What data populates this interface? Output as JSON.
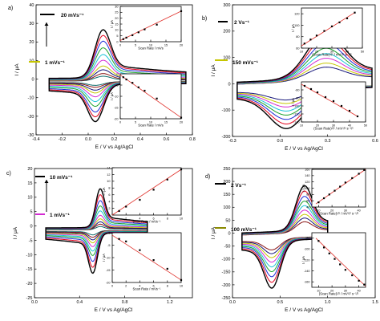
{
  "figure": {
    "background": "#ffffff",
    "axis_color": "#000000",
    "fit_color": "#e0302a",
    "curve_colors": [
      "#000000",
      "#e3001b",
      "#1d2bd8",
      "#1aa02a",
      "#19c4d8",
      "#d42bd2",
      "#c6c600",
      "#15157a",
      "#8a1414",
      "#0d6b6b"
    ]
  },
  "chart_data": [
    {
      "type": "line",
      "panel": "a)",
      "xlabel": "E / V vs Ag/AgCl",
      "ylabel": "I / μA",
      "xlim": [
        -0.4,
        0.8
      ],
      "ylim": [
        -30,
        40
      ],
      "xticks": [
        -0.4,
        -0.2,
        0.0,
        0.2,
        0.4,
        0.6,
        0.8
      ],
      "xticklabels": [
        "-0.4",
        "-0.2",
        "0.0",
        "0.2",
        "0.4",
        "0.6",
        "0.8"
      ],
      "yticks": [
        -30,
        -20,
        -10,
        0,
        10,
        20,
        30,
        40
      ],
      "yticklabels": [
        "-30",
        "-20",
        "-10",
        "0",
        "10",
        "20",
        "30",
        "40"
      ],
      "cv": {
        "e_start": -0.3,
        "e_end": 0.75,
        "e_pa": 0.11,
        "e_pc": 0.06,
        "width": 0.085,
        "base_slope": 0.6,
        "base_offset": -1.2,
        "peaks_a": [
          27,
          24,
          21,
          17.5,
          14,
          11,
          8,
          6,
          4,
          2.6
        ],
        "peaks_c": [
          -21,
          -18.5,
          -16,
          -13,
          -10.5,
          -8,
          -6,
          -4.5,
          -3,
          -2
        ]
      },
      "legend": [
        {
          "label": "20 mVs⁻¹",
          "color": "#000000"
        },
        {
          "label": "1 mVs⁻¹",
          "color": "#c6c600"
        }
      ],
      "insets": [
        {
          "xlabel": "Scan Rate / mVs",
          "ylabel": "I / μA",
          "xlim": [
            0,
            20
          ],
          "ylim": [
            0,
            30
          ],
          "xticks": [
            0,
            5,
            10,
            15,
            20
          ],
          "yticks": [
            0,
            5,
            10,
            15,
            20,
            25,
            30
          ],
          "points": [
            [
              1,
              2.2
            ],
            [
              2,
              3.5
            ],
            [
              4,
              5.5
            ],
            [
              6,
              8
            ],
            [
              8,
              10.5
            ],
            [
              12,
              14.5
            ],
            [
              20,
              26
            ]
          ],
          "fit": [
            [
              0,
              1
            ],
            [
              20,
              26
            ]
          ]
        },
        {
          "xlabel": "Scan Rate / mVs",
          "ylabel": "I / μA",
          "xlim": [
            0,
            20
          ],
          "ylim": [
            -20,
            0
          ],
          "xticks": [
            0,
            5,
            10,
            15,
            20
          ],
          "yticks": [
            -20,
            -15,
            -10,
            -5,
            0
          ],
          "points": [
            [
              1,
              -1.5
            ],
            [
              2,
              -2.5
            ],
            [
              4,
              -4
            ],
            [
              6,
              -6
            ],
            [
              8,
              -7.5
            ],
            [
              12,
              -11
            ],
            [
              20,
              -19.5
            ]
          ],
          "fit": [
            [
              0,
              -0.5
            ],
            [
              20,
              -19.5
            ]
          ]
        }
      ]
    },
    {
      "type": "line",
      "panel": "b)",
      "xlabel": "E / V vs Ag/AgCl",
      "ylabel": "I / μA",
      "xlim": [
        -0.3,
        0.6
      ],
      "ylim": [
        -200,
        300
      ],
      "xticks": [
        -0.3,
        0.0,
        0.3,
        0.6
      ],
      "xticklabels": [
        "-0.3",
        "0.0",
        "0.3",
        "0.6"
      ],
      "yticks": [
        -200,
        -100,
        0,
        100,
        200,
        300
      ],
      "yticklabels": [
        "-200",
        "-100",
        "0",
        "100",
        "200",
        "300"
      ],
      "cv": {
        "e_start": -0.27,
        "e_end": 0.58,
        "e_pa": 0.28,
        "e_pc": 0.05,
        "width": 0.16,
        "base_slope": 60,
        "base_offset": -5,
        "peaks_a": [
          185,
          165,
          145,
          125,
          105,
          88,
          70,
          55
        ],
        "peaks_c": [
          -150,
          -133,
          -116,
          -100,
          -85,
          -70,
          -57,
          -44
        ]
      },
      "legend": [
        {
          "label": "2 Vs⁻¹",
          "color": "#000000"
        },
        {
          "label": "150 mVs⁻¹",
          "color": "#c6c600"
        }
      ],
      "insets": [
        {
          "xlabel": "(Scan Rate)¹/² / mV¹/² s⁻¹/²",
          "ylabel": "I / μA",
          "xlim": [
            10,
            50
          ],
          "ylim": [
            60,
            130
          ],
          "xticks": [
            10,
            20,
            30,
            40,
            50
          ],
          "yticks": [
            60,
            80,
            100,
            120
          ],
          "points": [
            [
              12,
              68
            ],
            [
              16,
              75
            ],
            [
              20,
              82
            ],
            [
              25,
              90
            ],
            [
              30,
              98
            ],
            [
              35,
              105
            ],
            [
              40,
              112
            ],
            [
              45,
              122
            ]
          ],
          "fit": [
            [
              10,
              64
            ],
            [
              45,
              122
            ]
          ]
        },
        {
          "xlabel": "(Scan Rate)¹/² / mV¹/² s⁻¹/²",
          "ylabel": "I / μA",
          "xlim": [
            10,
            50
          ],
          "ylim": [
            -140,
            -40
          ],
          "xticks": [
            10,
            20,
            30,
            40,
            50
          ],
          "yticks": [
            -140,
            -120,
            -100,
            -80,
            -60
          ],
          "points": [
            [
              12,
              -50
            ],
            [
              16,
              -58
            ],
            [
              20,
              -66
            ],
            [
              25,
              -78
            ],
            [
              30,
              -88
            ],
            [
              35,
              -100
            ],
            [
              40,
              -112
            ],
            [
              45,
              -126
            ]
          ],
          "fit": [
            [
              10,
              -46
            ],
            [
              45,
              -126
            ]
          ]
        }
      ]
    },
    {
      "type": "line",
      "panel": "c)",
      "xlabel": "E / V vs Ag/AgCl",
      "ylabel": "I / μA",
      "xlim": [
        0.0,
        1.4
      ],
      "ylim": [
        -25,
        20
      ],
      "xticks": [
        0.0,
        0.4,
        0.8,
        1.2
      ],
      "xticklabels": [
        "0.0",
        "0.4",
        "0.8",
        "1.2"
      ],
      "yticks": [
        -25,
        -20,
        -15,
        -10,
        -5,
        0,
        5,
        10,
        15,
        20
      ],
      "yticklabels": [
        "-25",
        "-20",
        "-15",
        "-10",
        "-5",
        "0",
        "5",
        "10",
        "15",
        "20"
      ],
      "cv": {
        "e_start": 0.1,
        "e_end": 1.0,
        "e_pa": 0.58,
        "e_pc": 0.52,
        "width": 0.055,
        "base_slope": 0.4,
        "base_offset": -1.5,
        "peaks_a": [
          14,
          12,
          10,
          8.2,
          6.5,
          5,
          3.8,
          2.8,
          2,
          1.2
        ],
        "peaks_c": [
          -14.5,
          -12.5,
          -10.5,
          -8.5,
          -7,
          -5.5,
          -4.2,
          -3.2,
          -2.3,
          -1.5
        ]
      },
      "legend": [
        {
          "label": "10 mVs⁻¹",
          "color": "#000000"
        },
        {
          "label": "1 mVs⁻¹",
          "color": "#d42bd2"
        }
      ],
      "insets": [
        {
          "xlabel": "Scan Rate / mVs⁻¹",
          "ylabel": "I / μA",
          "xlim": [
            0,
            10
          ],
          "ylim": [
            0,
            14
          ],
          "xticks": [
            0,
            2,
            4,
            6,
            8,
            10
          ],
          "yticks": [
            0,
            2,
            4,
            6,
            8,
            10,
            12,
            14
          ],
          "points": [
            [
              1,
              1.2
            ],
            [
              2,
              2.5
            ],
            [
              4,
              4.5
            ],
            [
              6,
              7.5
            ],
            [
              8,
              10.5
            ],
            [
              10,
              13.5
            ]
          ],
          "fit": [
            [
              0,
              0
            ],
            [
              10,
              13.5
            ]
          ]
        },
        {
          "xlabel": "Scan Rate / mVs⁻¹",
          "ylabel": "I / μA",
          "xlim": [
            0,
            10
          ],
          "ylim": [
            -20,
            0
          ],
          "xticks": [
            0,
            2,
            4,
            6,
            8,
            10
          ],
          "yticks": [
            -20,
            -15,
            -10,
            -5,
            0
          ],
          "points": [
            [
              1,
              -2.5
            ],
            [
              2,
              -3.5
            ],
            [
              4,
              -7
            ],
            [
              6,
              -11
            ],
            [
              8,
              -14.5
            ],
            [
              10,
              -19
            ]
          ],
          "fit": [
            [
              0,
              -1
            ],
            [
              10,
              -19
            ]
          ]
        }
      ]
    },
    {
      "type": "line",
      "panel": "d)",
      "xlabel": "E / V vs Ag/AgCl",
      "ylabel": "I / μA",
      "xlim": [
        0.0,
        1.5
      ],
      "ylim": [
        -250,
        250
      ],
      "xticks": [
        0.0,
        0.5,
        1.0,
        1.5
      ],
      "xticklabels": [
        "0.0",
        "0.5",
        "1.0",
        "1.5"
      ],
      "yticks": [
        -250,
        -200,
        -150,
        -100,
        -50,
        0,
        50,
        100,
        150,
        200,
        250
      ],
      "yticklabels": [
        "-250",
        "-200",
        "-150",
        "-100",
        "-50",
        "0",
        "50",
        "100",
        "150",
        "200",
        "250"
      ],
      "cv": {
        "e_start": 0.1,
        "e_end": 1.0,
        "e_pa": 0.75,
        "e_pc": 0.42,
        "width": 0.12,
        "base_slope": 40,
        "base_offset": -10,
        "peaks_a": [
          180,
          160,
          140,
          122,
          105,
          88,
          72,
          58,
          44
        ],
        "peaks_c": [
          -190,
          -168,
          -147,
          -128,
          -110,
          -92,
          -75,
          -60,
          -46
        ]
      },
      "legend": [
        {
          "label": "2 Vs⁻¹",
          "color": "#000000"
        },
        {
          "label": "100 mVs⁻¹",
          "color": "#8a8a00"
        }
      ],
      "insets": [
        {
          "xlabel": "(Scan Rate)¹/² / mV¹/² s⁻¹/²",
          "ylabel": "I / μA",
          "xlim": [
            5,
            45
          ],
          "ylim": [
            40,
            160
          ],
          "xticks": [
            10,
            20,
            30,
            40
          ],
          "yticks": [
            40,
            60,
            80,
            100,
            120,
            140,
            160
          ],
          "points": [
            [
              10,
              55
            ],
            [
              14,
              68
            ],
            [
              18,
              80
            ],
            [
              22,
              92
            ],
            [
              26,
              105
            ],
            [
              30,
              118
            ],
            [
              35,
              132
            ],
            [
              40,
              146
            ],
            [
              44,
              158
            ]
          ],
          "fit": [
            [
              8,
              50
            ],
            [
              45,
              160
            ]
          ]
        },
        {
          "xlabel": "(Scan Rate)¹/² / mV¹/² s⁻¹/²",
          "ylabel": "I / μA",
          "xlim": [
            5,
            45
          ],
          "ylim": [
            -170,
            -70
          ],
          "xticks": [
            10,
            20,
            30,
            40
          ],
          "yticks": [
            -160,
            -140,
            -120,
            -100,
            -80
          ],
          "points": [
            [
              10,
              -85
            ],
            [
              14,
              -97
            ],
            [
              18,
              -108
            ],
            [
              22,
              -118
            ],
            [
              26,
              -128
            ],
            [
              30,
              -138
            ],
            [
              35,
              -148
            ],
            [
              40,
              -158
            ],
            [
              44,
              -165
            ]
          ],
          "fit": [
            [
              8,
              -80
            ],
            [
              45,
              -168
            ]
          ]
        }
      ]
    }
  ]
}
